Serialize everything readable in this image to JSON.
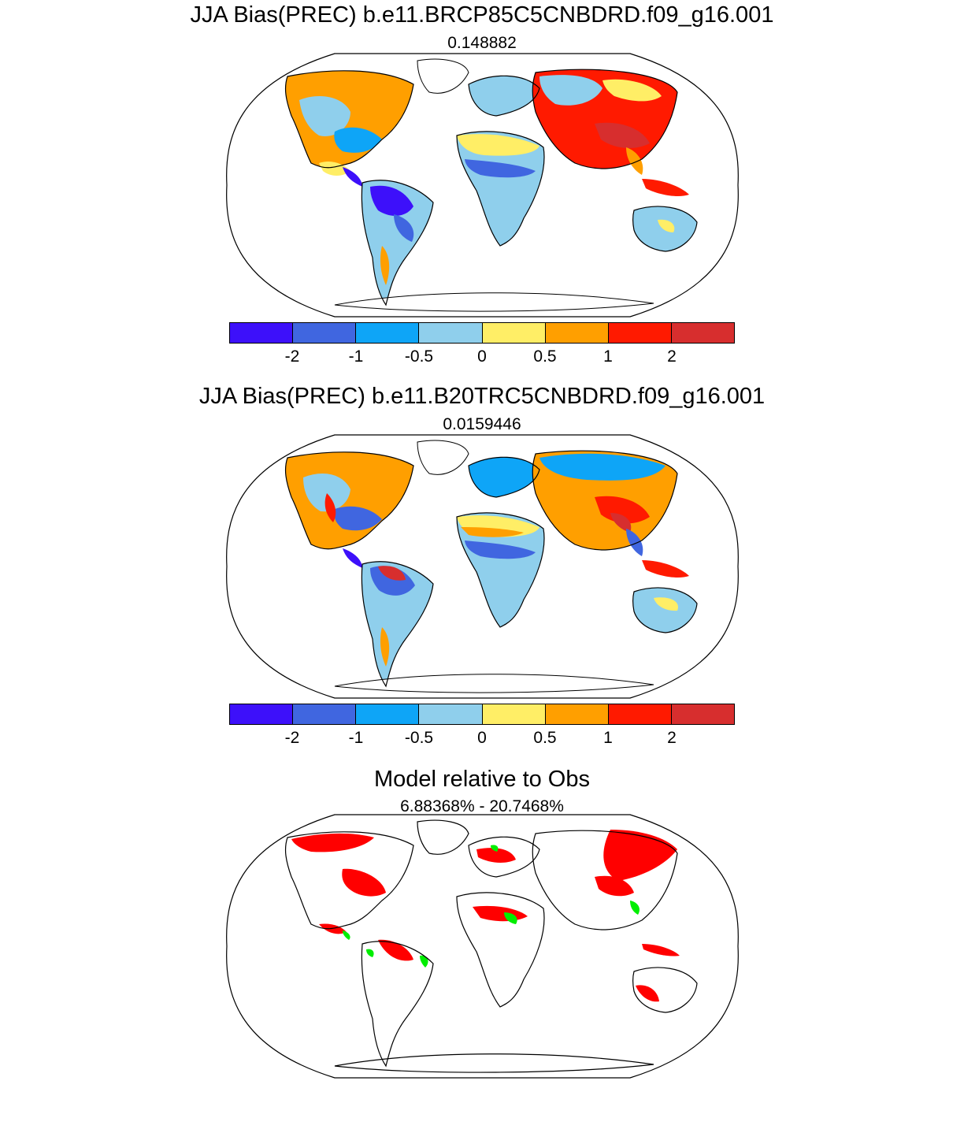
{
  "colorbar": {
    "colors": [
      "#3d10fa",
      "#4066e0",
      "#0ea5f7",
      "#8fcfec",
      "#ffee66",
      "#ff9f00",
      "#ff1a00",
      "#d72e2e"
    ],
    "labels": [
      "-2",
      "-1",
      "-0.5",
      "0",
      "0.5",
      "1",
      "2"
    ]
  },
  "panels": [
    {
      "title": "JJA Bias(PREC) b.e11.BRCP85C5CNBDRD.f09_g16.001",
      "subtitle": "0.148882"
    },
    {
      "title": "JJA Bias(PREC) b.e11.B20TRC5CNBDRD.f09_g16.001",
      "subtitle": "0.0159446"
    },
    {
      "title": "Model relative to Obs",
      "subtitle": "6.88368% - 20.7468%",
      "colors": {
        "worse": "#ff0000",
        "better": "#00ee00"
      }
    }
  ]
}
